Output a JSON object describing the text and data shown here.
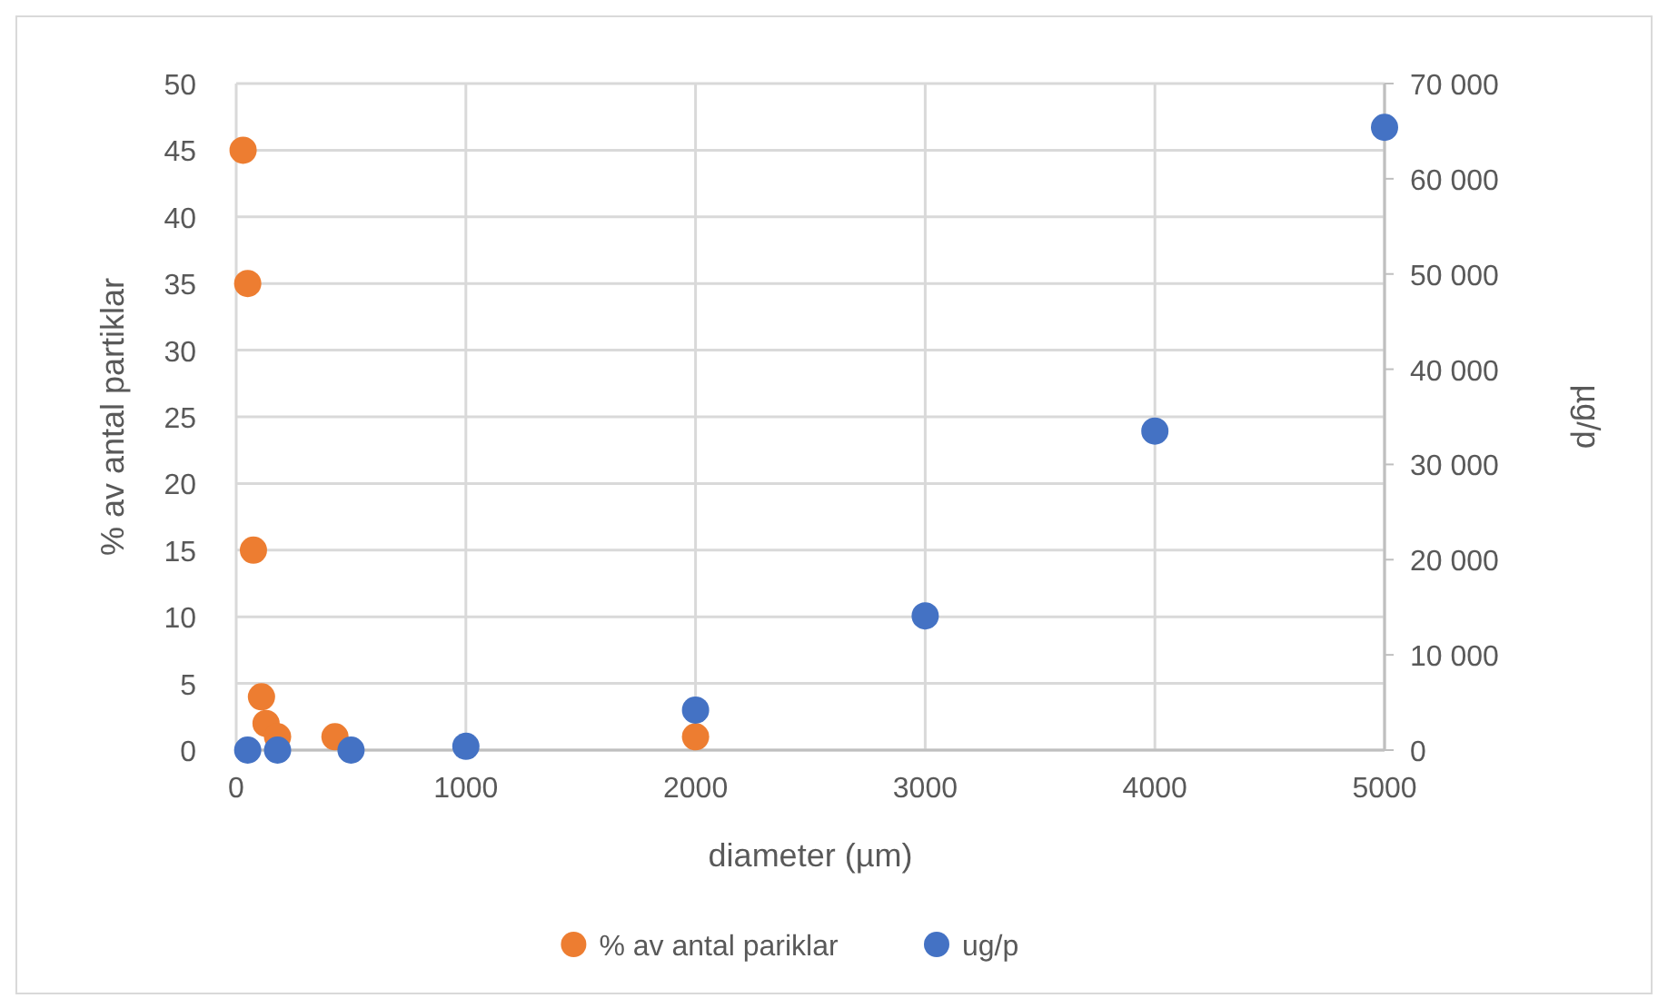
{
  "chart_data": {
    "type": "scatter",
    "xlabel": "diameter (µm)",
    "ylabel": "% av antal partiklar",
    "y2label": "µg/p",
    "xlim": [
      0,
      5000
    ],
    "xticks": [
      0,
      1000,
      2000,
      3000,
      4000,
      5000
    ],
    "ylim": [
      0,
      50
    ],
    "yticks": [
      0,
      5,
      10,
      15,
      20,
      25,
      30,
      35,
      40,
      45,
      50
    ],
    "y2lim": [
      0,
      70000
    ],
    "y2ticks": [
      {
        "value": 0,
        "label": "0"
      },
      {
        "value": 10000,
        "label": "10 000"
      },
      {
        "value": 20000,
        "label": "20 000"
      },
      {
        "value": 30000,
        "label": "30 000"
      },
      {
        "value": 40000,
        "label": "40 000"
      },
      {
        "value": 50000,
        "label": "50 000"
      },
      {
        "value": 60000,
        "label": "60 000"
      },
      {
        "value": 70000,
        "label": "70 000"
      }
    ],
    "grid": true,
    "legend": "bottom",
    "marker": "circle",
    "series": [
      {
        "name": "% av antal pariklar",
        "color": "#ed7d31",
        "x": [
          30,
          50,
          75,
          110,
          130,
          180,
          430,
          2000
        ],
        "values": [
          45,
          35,
          15,
          4,
          2,
          1,
          1,
          1
        ]
      },
      {
        "name": "ug/p",
        "color": "#4472c4",
        "axis": "y2",
        "x": [
          50,
          180,
          500,
          1000,
          2000,
          3000,
          4000,
          5000
        ],
        "values": [
          0,
          0,
          0,
          400,
          4200,
          14100,
          33500,
          65400
        ]
      }
    ]
  }
}
